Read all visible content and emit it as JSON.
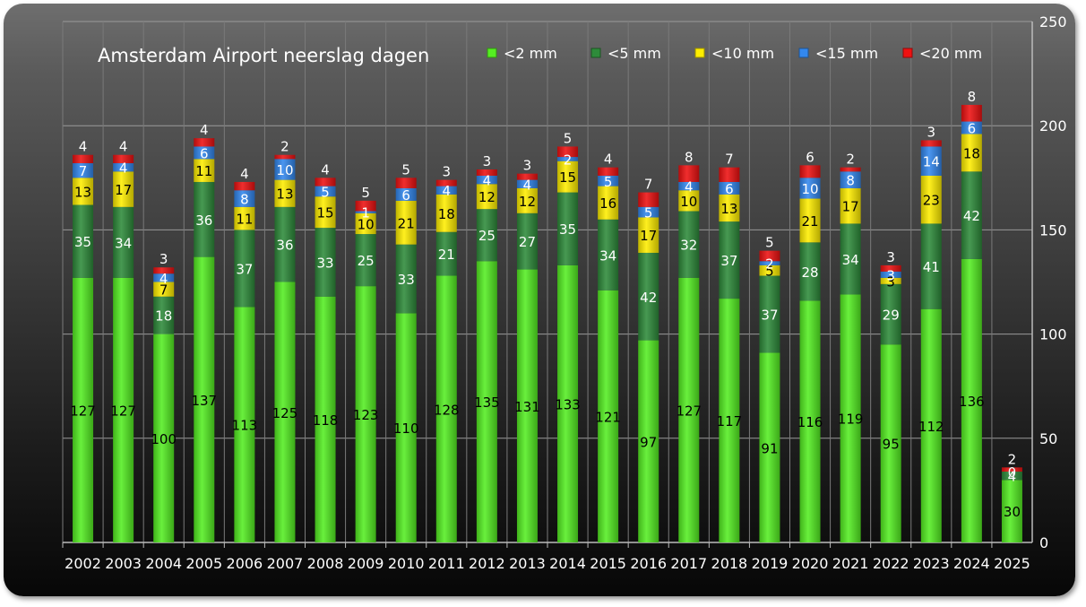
{
  "chart_data": {
    "type": "bar",
    "stacked": true,
    "title": "Amsterdam Airport neerslag dagen",
    "categories": [
      "2002",
      "2003",
      "2004",
      "2005",
      "2006",
      "2007",
      "2008",
      "2009",
      "2010",
      "2011",
      "2012",
      "2013",
      "2014",
      "2015",
      "2016",
      "2017",
      "2018",
      "2019",
      "2020",
      "2021",
      "2022",
      "2023",
      "2024",
      "2025"
    ],
    "series": [
      {
        "name": "<2 mm",
        "color": "#55ee22",
        "values": [
          127,
          127,
          100,
          137,
          113,
          125,
          118,
          123,
          110,
          128,
          135,
          131,
          133,
          121,
          97,
          127,
          117,
          91,
          116,
          119,
          95,
          112,
          136,
          30
        ]
      },
      {
        "name": "<5 mm",
        "color": "#2e8b3a",
        "values": [
          35,
          34,
          18,
          36,
          37,
          36,
          33,
          25,
          33,
          21,
          25,
          27,
          35,
          34,
          42,
          32,
          37,
          37,
          28,
          34,
          29,
          41,
          42,
          4
        ]
      },
      {
        "name": "<10 mm",
        "color": "#ffee00",
        "values": [
          13,
          17,
          7,
          11,
          11,
          13,
          15,
          10,
          21,
          18,
          12,
          12,
          15,
          16,
          17,
          10,
          13,
          5,
          21,
          17,
          3,
          23,
          18,
          0
        ]
      },
      {
        "name": "<15 mm",
        "color": "#3388ee",
        "values": [
          7,
          4,
          4,
          6,
          8,
          10,
          5,
          1,
          6,
          4,
          4,
          4,
          2,
          5,
          5,
          4,
          6,
          2,
          10,
          8,
          3,
          14,
          6,
          0
        ]
      },
      {
        "name": "<20 mm",
        "color": "#ee1111",
        "values": [
          4,
          4,
          3,
          4,
          4,
          2,
          4,
          5,
          5,
          3,
          3,
          3,
          5,
          4,
          7,
          8,
          7,
          5,
          6,
          2,
          3,
          3,
          8,
          2
        ]
      }
    ],
    "y_axis": {
      "position": "right",
      "min": 0,
      "max": 250,
      "ticks": [
        0,
        50,
        100,
        150,
        200,
        250
      ]
    },
    "grid": {
      "horizontal": true,
      "vertical": true
    },
    "legend": {
      "placement": "top-right"
    }
  }
}
